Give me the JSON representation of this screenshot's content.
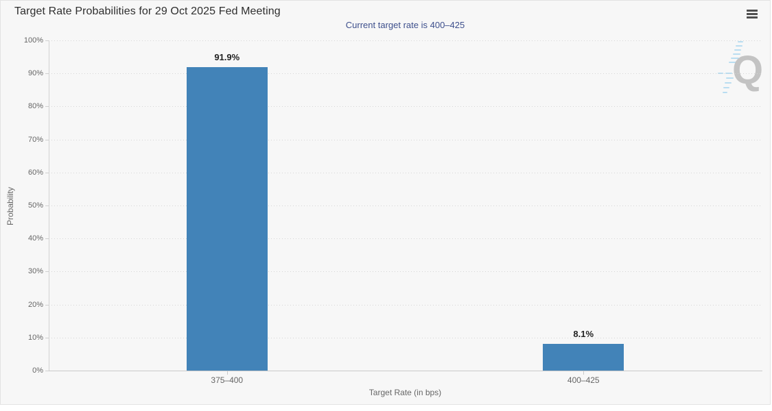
{
  "chart_data": {
    "type": "bar",
    "title": "Target Rate Probabilities for 29 Oct 2025 Fed Meeting",
    "subtitle": "Current target rate is 400–425",
    "categories": [
      "375–400",
      "400–425"
    ],
    "values": [
      91.9,
      8.1
    ],
    "data_labels": [
      "91.9%",
      "8.1%"
    ],
    "xlabel": "Target Rate (in bps)",
    "ylabel": "Probability",
    "ylim": [
      0,
      100
    ],
    "ytick_step": 10,
    "ytick_suffix": "%",
    "grid": "horizontal-dotted",
    "legend_position": "none",
    "bar_color": "#4283b8"
  },
  "toolbar": {
    "menu_icon": "hamburger-icon"
  },
  "watermark": {
    "letter": "Q"
  },
  "colors": {
    "background": "#f7f7f7",
    "title": "#2e2e2e",
    "subtitle": "#3d4f8c",
    "axis_text": "#666666",
    "bar": "#4283b8",
    "watermark": "#c3c3c3"
  }
}
